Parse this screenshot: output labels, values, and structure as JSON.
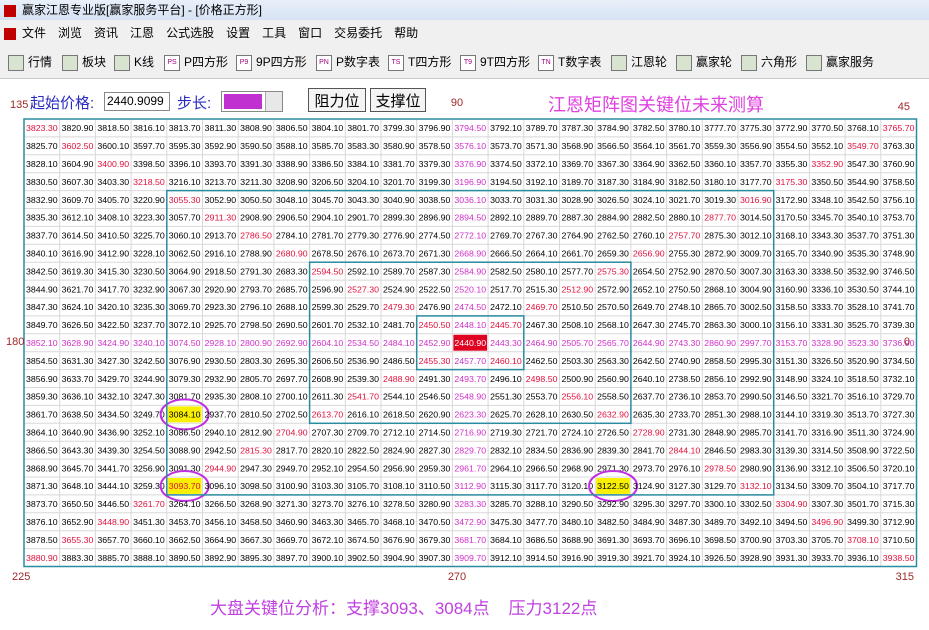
{
  "window": {
    "title": "赢家江恩专业版[赢家服务平台] - [价格正方形]"
  },
  "menu": [
    "文件",
    "浏览",
    "资讯",
    "江恩",
    "公式选股",
    "设置",
    "工具",
    "窗口",
    "交易委托",
    "帮助"
  ],
  "toolbar": [
    {
      "label": "行情"
    },
    {
      "label": "板块"
    },
    {
      "label": "K线"
    },
    {
      "icon": "PS",
      "label": "P四方形"
    },
    {
      "icon": "P9",
      "label": "9P四方形"
    },
    {
      "icon": "PN",
      "label": "P数字表"
    },
    {
      "icon": "TS",
      "label": "T四方形"
    },
    {
      "icon": "T9",
      "label": "9T四方形"
    },
    {
      "icon": "TN",
      "label": "T数字表"
    },
    {
      "label": "江恩轮"
    },
    {
      "label": "赢家轮"
    },
    {
      "label": "六角形"
    },
    {
      "label": "赢家服务"
    }
  ],
  "controls": {
    "start_label": "起始价格:",
    "start_value": "2440.9099",
    "step_label": "步长:",
    "buttons": [
      "阻力位",
      "支撑位"
    ],
    "heading": "江恩矩阵图关键位未来测算"
  },
  "angles": {
    "top_left": "135",
    "top": "90",
    "top_right": "45",
    "left": "180",
    "right": "0",
    "bottom_left": "225",
    "bottom": "270",
    "bottom_right": "315"
  },
  "table": {
    "rows": [
      [
        "3823.30",
        "3820.90",
        "3818.50",
        "3816.10",
        "3813.70",
        "3811.30",
        "3808.90",
        "3806.50",
        "3804.10",
        "3801.70",
        "3799.30",
        "3796.90",
        "3794.50",
        "3792.10",
        "3789.70",
        "3787.30",
        "3784.90",
        "3782.50",
        "3780.10",
        "3777.70",
        "3775.30",
        "3772.90",
        "3770.50",
        "3768.10",
        "3765.70"
      ],
      [
        "3825.70",
        "3602.50",
        "3600.10",
        "3597.70",
        "3595.30",
        "3592.90",
        "3590.50",
        "3588.10",
        "3585.70",
        "3583.30",
        "3580.90",
        "3578.50",
        "3576.10",
        "3573.70",
        "3571.30",
        "3568.90",
        "3566.50",
        "3564.10",
        "3561.70",
        "3559.30",
        "3556.90",
        "3554.50",
        "3552.10",
        "3549.70",
        "3763.30"
      ],
      [
        "3828.10",
        "3604.90",
        "3400.90",
        "3398.50",
        "3396.10",
        "3393.70",
        "3391.30",
        "3388.90",
        "3386.50",
        "3384.10",
        "3381.70",
        "3379.30",
        "3376.90",
        "3374.50",
        "3372.10",
        "3369.70",
        "3367.30",
        "3364.90",
        "3362.50",
        "3360.10",
        "3357.70",
        "3355.30",
        "3352.90",
        "3547.30",
        "3760.90"
      ],
      [
        "3830.50",
        "3607.30",
        "3403.30",
        "3218.50",
        "3216.10",
        "3213.70",
        "3211.30",
        "3208.90",
        "3206.50",
        "3204.10",
        "3201.70",
        "3199.30",
        "3196.90",
        "3194.50",
        "3192.10",
        "3189.70",
        "3187.30",
        "3184.90",
        "3182.50",
        "3180.10",
        "3177.70",
        "3175.30",
        "3350.50",
        "3544.90",
        "3758.50"
      ],
      [
        "3832.90",
        "3609.70",
        "3405.70",
        "3220.90",
        "3055.30",
        "3052.90",
        "3050.50",
        "3048.10",
        "3045.70",
        "3043.30",
        "3040.90",
        "3038.50",
        "3036.10",
        "3033.70",
        "3031.30",
        "3028.90",
        "3026.50",
        "3024.10",
        "3021.70",
        "3019.30",
        "3016.90",
        "3172.90",
        "3348.10",
        "3542.50",
        "3756.10"
      ],
      [
        "3835.30",
        "3612.10",
        "3408.10",
        "3223.30",
        "3057.70",
        "2911.30",
        "2908.90",
        "2906.50",
        "2904.10",
        "2901.70",
        "2899.30",
        "2896.90",
        "2894.50",
        "2892.10",
        "2889.70",
        "2887.30",
        "2884.90",
        "2882.50",
        "2880.10",
        "2877.70",
        "3014.50",
        "3170.50",
        "3345.70",
        "3540.10",
        "3753.70"
      ],
      [
        "3837.70",
        "3614.50",
        "3410.50",
        "3225.70",
        "3060.10",
        "2913.70",
        "2786.50",
        "2784.10",
        "2781.70",
        "2779.30",
        "2776.90",
        "2774.50",
        "2772.10",
        "2769.70",
        "2767.30",
        "2764.90",
        "2762.50",
        "2760.10",
        "2757.70",
        "2875.30",
        "3012.10",
        "3168.10",
        "3343.30",
        "3537.70",
        "3751.30"
      ],
      [
        "3840.10",
        "3616.90",
        "3412.90",
        "3228.10",
        "3062.50",
        "2916.10",
        "2788.90",
        "2680.90",
        "2678.50",
        "2676.10",
        "2673.70",
        "2671.30",
        "2668.90",
        "2666.50",
        "2664.10",
        "2661.70",
        "2659.30",
        "2656.90",
        "2755.30",
        "2872.90",
        "3009.70",
        "3165.70",
        "3340.90",
        "3535.30",
        "3748.90"
      ],
      [
        "3842.50",
        "3619.30",
        "3415.30",
        "3230.50",
        "3064.90",
        "2918.50",
        "2791.30",
        "2683.30",
        "2594.50",
        "2592.10",
        "2589.70",
        "2587.30",
        "2584.90",
        "2582.50",
        "2580.10",
        "2577.70",
        "2575.30",
        "2654.50",
        "2752.90",
        "2870.50",
        "3007.30",
        "3163.30",
        "3338.50",
        "3532.90",
        "3746.50"
      ],
      [
        "3844.90",
        "3621.70",
        "3417.70",
        "3232.90",
        "3067.30",
        "2920.90",
        "2793.70",
        "2685.70",
        "2596.90",
        "2527.30",
        "2524.90",
        "2522.50",
        "2520.10",
        "2517.70",
        "2515.30",
        "2512.90",
        "2572.90",
        "2652.10",
        "2750.50",
        "2868.10",
        "3004.90",
        "3160.90",
        "3336.10",
        "3530.50",
        "3744.10"
      ],
      [
        "3847.30",
        "3624.10",
        "3420.10",
        "3235.30",
        "3069.70",
        "2923.30",
        "2796.10",
        "2688.10",
        "2599.30",
        "2529.70",
        "2479.30",
        "2476.90",
        "2474.50",
        "2472.10",
        "2469.70",
        "2510.50",
        "2570.50",
        "2649.70",
        "2748.10",
        "2865.70",
        "3002.50",
        "3158.50",
        "3333.70",
        "3528.10",
        "3741.70"
      ],
      [
        "3849.70",
        "3626.50",
        "3422.50",
        "3237.70",
        "3072.10",
        "2925.70",
        "2798.50",
        "2690.50",
        "2601.70",
        "2532.10",
        "2481.70",
        "2450.50",
        "2448.10",
        "2445.70",
        "2467.30",
        "2508.10",
        "2568.10",
        "2647.30",
        "2745.70",
        "2863.30",
        "3000.10",
        "3156.10",
        "3331.30",
        "3525.70",
        "3739.30"
      ],
      [
        "3852.10",
        "3628.90",
        "3424.90",
        "3240.10",
        "3074.50",
        "2928.10",
        "2800.90",
        "2692.90",
        "2604.10",
        "2534.50",
        "2484.10",
        "2452.90",
        "2440.90",
        "2443.30",
        "2464.90",
        "2505.70",
        "2565.70",
        "2644.90",
        "2743.30",
        "2860.90",
        "2997.70",
        "3153.70",
        "3328.90",
        "3523.30",
        "3736.90"
      ],
      [
        "3854.50",
        "3631.30",
        "3427.30",
        "3242.50",
        "3076.90",
        "2930.50",
        "2803.30",
        "2695.30",
        "2606.50",
        "2536.90",
        "2486.50",
        "2455.30",
        "2457.70",
        "2460.10",
        "2462.50",
        "2503.30",
        "2563.30",
        "2642.50",
        "2740.90",
        "2858.50",
        "2995.30",
        "3151.30",
        "3326.50",
        "3520.90",
        "3734.50"
      ],
      [
        "3856.90",
        "3633.70",
        "3429.70",
        "3244.90",
        "3079.30",
        "2932.90",
        "2805.70",
        "2697.70",
        "2608.90",
        "2539.30",
        "2488.90",
        "2491.30",
        "2493.70",
        "2496.10",
        "2498.50",
        "2500.90",
        "2560.90",
        "2640.10",
        "2738.50",
        "2856.10",
        "2992.90",
        "3148.90",
        "3324.10",
        "3518.50",
        "3732.10"
      ],
      [
        "3859.30",
        "3636.10",
        "3432.10",
        "3247.30",
        "3081.70",
        "2935.30",
        "2808.10",
        "2700.10",
        "2611.30",
        "2541.70",
        "2544.10",
        "2546.50",
        "2548.90",
        "2551.30",
        "2553.70",
        "2556.10",
        "2558.50",
        "2637.70",
        "2736.10",
        "2853.70",
        "2990.50",
        "3146.50",
        "3321.70",
        "3516.10",
        "3729.70"
      ],
      [
        "3861.70",
        "3638.50",
        "3434.50",
        "3249.70",
        "3084.10",
        "2937.70",
        "2810.50",
        "2702.50",
        "2613.70",
        "2616.10",
        "2618.50",
        "2620.90",
        "2623.30",
        "2625.70",
        "2628.10",
        "2630.50",
        "2632.90",
        "2635.30",
        "2733.70",
        "2851.30",
        "2988.10",
        "3144.10",
        "3319.30",
        "3513.70",
        "3727.30"
      ],
      [
        "3864.10",
        "3640.90",
        "3436.90",
        "3252.10",
        "3086.50",
        "2940.10",
        "2812.90",
        "2704.90",
        "2707.30",
        "2709.70",
        "2712.10",
        "2714.50",
        "2716.90",
        "2719.30",
        "2721.70",
        "2724.10",
        "2726.50",
        "2728.90",
        "2731.30",
        "2848.90",
        "2985.70",
        "3141.70",
        "3316.90",
        "3511.30",
        "3724.90"
      ],
      [
        "3866.50",
        "3643.30",
        "3439.30",
        "3254.50",
        "3088.90",
        "2942.50",
        "2815.30",
        "2817.70",
        "2820.10",
        "2822.50",
        "2824.90",
        "2827.30",
        "2829.70",
        "2832.10",
        "2834.50",
        "2836.90",
        "2839.30",
        "2841.70",
        "2844.10",
        "2846.50",
        "2983.30",
        "3139.30",
        "3314.50",
        "3508.90",
        "3722.50"
      ],
      [
        "3868.90",
        "3645.70",
        "3441.70",
        "3256.90",
        "3091.30",
        "2944.90",
        "2947.30",
        "2949.70",
        "2952.10",
        "2954.50",
        "2956.90",
        "2959.30",
        "2961.70",
        "2964.10",
        "2966.50",
        "2968.90",
        "2971.30",
        "2973.70",
        "2976.10",
        "2978.50",
        "2980.90",
        "3136.90",
        "3312.10",
        "3506.50",
        "3720.10"
      ],
      [
        "3871.30",
        "3648.10",
        "3444.10",
        "3259.30",
        "3093.70",
        "3096.10",
        "3098.50",
        "3100.90",
        "3103.30",
        "3105.70",
        "3108.10",
        "3110.50",
        "3112.90",
        "3115.30",
        "3117.70",
        "3120.10",
        "3122.50",
        "3124.90",
        "3127.30",
        "3129.70",
        "3132.10",
        "3134.50",
        "3309.70",
        "3504.10",
        "3717.70"
      ],
      [
        "3873.70",
        "3650.50",
        "3446.50",
        "3261.70",
        "3264.10",
        "3266.50",
        "3268.90",
        "3271.30",
        "3273.70",
        "3276.10",
        "3278.50",
        "3280.90",
        "3283.30",
        "3285.70",
        "3288.10",
        "3290.50",
        "3292.90",
        "3295.30",
        "3297.70",
        "3300.10",
        "3302.50",
        "3304.90",
        "3307.30",
        "3501.70",
        "3715.30"
      ],
      [
        "3876.10",
        "3652.90",
        "3448.90",
        "3451.30",
        "3453.70",
        "3456.10",
        "3458.50",
        "3460.90",
        "3463.30",
        "3465.70",
        "3468.10",
        "3470.50",
        "3472.90",
        "3475.30",
        "3477.70",
        "3480.10",
        "3482.50",
        "3484.90",
        "3487.30",
        "3489.70",
        "3492.10",
        "3494.50",
        "3496.90",
        "3499.30",
        "3712.90"
      ],
      [
        "3878.50",
        "3655.30",
        "3657.70",
        "3660.10",
        "3662.50",
        "3664.90",
        "3667.30",
        "3669.70",
        "3672.10",
        "3674.50",
        "3676.90",
        "3679.30",
        "3681.70",
        "3684.10",
        "3686.50",
        "3688.90",
        "3691.30",
        "3693.70",
        "3696.10",
        "3698.50",
        "3700.90",
        "3703.30",
        "3705.70",
        "3708.10",
        "3710.50"
      ],
      [
        "3880.90",
        "3883.30",
        "3885.70",
        "3888.10",
        "3890.50",
        "3892.90",
        "3895.30",
        "3897.70",
        "3900.10",
        "3902.50",
        "3904.90",
        "3907.30",
        "3909.70",
        "3912.10",
        "3914.50",
        "3916.90",
        "3919.30",
        "3921.70",
        "3924.10",
        "3926.50",
        "3928.90",
        "3931.30",
        "3933.70",
        "3936.10",
        "3938.50"
      ]
    ]
  },
  "footer": "大盘关键位分析：支撑3093、3084点    压力3122点"
}
